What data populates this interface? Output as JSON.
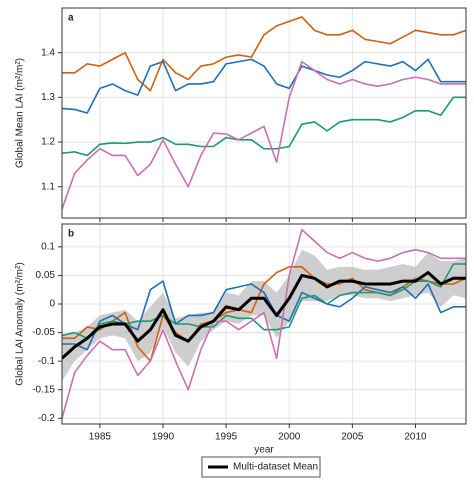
{
  "chart_data": [
    {
      "type": "line",
      "panel_label": "a",
      "y_label": "Global Mean LAI (m²/m²)",
      "x": [
        1982,
        1983,
        1984,
        1985,
        1986,
        1987,
        1988,
        1989,
        1990,
        1991,
        1992,
        1993,
        1994,
        1995,
        1996,
        1997,
        1998,
        1999,
        2000,
        2001,
        2002,
        2003,
        2004,
        2005,
        2006,
        2007,
        2008,
        2009,
        2010,
        2011,
        2012,
        2013,
        2014
      ],
      "xlim": [
        1982,
        2014
      ],
      "xticks": [
        1985,
        1990,
        1995,
        2000,
        2005,
        2010
      ],
      "ylim": [
        1.03,
        1.5
      ],
      "yticks": [
        1.1,
        1.2,
        1.3,
        1.4
      ],
      "grid": true,
      "series": [
        {
          "color": "#d45f0e",
          "values": [
            1.355,
            1.355,
            1.375,
            1.37,
            1.385,
            1.4,
            1.34,
            1.315,
            1.385,
            1.355,
            1.34,
            1.37,
            1.375,
            1.39,
            1.395,
            1.39,
            1.44,
            1.46,
            1.47,
            1.48,
            1.45,
            1.44,
            1.44,
            1.45,
            1.43,
            1.425,
            1.42,
            1.435,
            1.45,
            1.445,
            1.44,
            1.44,
            1.45
          ]
        },
        {
          "color": "#1f6fb4",
          "values": [
            1.275,
            1.273,
            1.265,
            1.32,
            1.33,
            1.315,
            1.305,
            1.37,
            1.38,
            1.315,
            1.33,
            1.33,
            1.335,
            1.375,
            1.38,
            1.385,
            1.37,
            1.33,
            1.32,
            1.37,
            1.36,
            1.35,
            1.345,
            1.36,
            1.38,
            1.375,
            1.37,
            1.38,
            1.36,
            1.385,
            1.335,
            1.335,
            1.335
          ]
        },
        {
          "color": "#1a9a73",
          "values": [
            1.175,
            1.178,
            1.17,
            1.195,
            1.198,
            1.197,
            1.2,
            1.2,
            1.21,
            1.195,
            1.195,
            1.19,
            1.19,
            1.21,
            1.205,
            1.205,
            1.185,
            1.185,
            1.19,
            1.24,
            1.245,
            1.225,
            1.245,
            1.25,
            1.25,
            1.25,
            1.245,
            1.255,
            1.27,
            1.27,
            1.26,
            1.3,
            1.3
          ]
        },
        {
          "color": "#cc6fb0",
          "values": [
            1.05,
            1.13,
            1.16,
            1.185,
            1.17,
            1.17,
            1.125,
            1.15,
            1.205,
            1.15,
            1.1,
            1.17,
            1.22,
            1.218,
            1.205,
            1.22,
            1.235,
            1.155,
            1.3,
            1.38,
            1.36,
            1.34,
            1.33,
            1.34,
            1.33,
            1.325,
            1.33,
            1.34,
            1.345,
            1.34,
            1.33,
            1.33,
            1.33
          ]
        }
      ]
    },
    {
      "type": "line",
      "panel_label": "b",
      "y_label": "Global LAI Anomaly (m²/m²)",
      "x_label": "year",
      "x": [
        1982,
        1983,
        1984,
        1985,
        1986,
        1987,
        1988,
        1989,
        1990,
        1991,
        1992,
        1993,
        1994,
        1995,
        1996,
        1997,
        1998,
        1999,
        2000,
        2001,
        2002,
        2003,
        2004,
        2005,
        2006,
        2007,
        2008,
        2009,
        2010,
        2011,
        2012,
        2013,
        2014
      ],
      "xlim": [
        1982,
        2014
      ],
      "xticks": [
        1985,
        1990,
        1995,
        2000,
        2005,
        2010
      ],
      "ylim": [
        -0.21,
        0.14
      ],
      "yticks": [
        -0.2,
        -0.15,
        -0.1,
        -0.05,
        0,
        0.05,
        0.1
      ],
      "grid": true,
      "band": {
        "color": "#bdbdbd",
        "lower": [
          -0.135,
          -0.1,
          -0.08,
          -0.06,
          -0.055,
          -0.06,
          -0.1,
          -0.085,
          -0.04,
          -0.085,
          -0.11,
          -0.065,
          -0.045,
          -0.03,
          -0.035,
          -0.02,
          -0.02,
          -0.06,
          -0.03,
          0.005,
          0.005,
          0.005,
          0.015,
          0.015,
          0.01,
          0.01,
          0.005,
          0.01,
          0.015,
          0.02,
          -0.005,
          0.015,
          0.01
        ],
        "upper": [
          -0.055,
          -0.05,
          -0.04,
          -0.02,
          -0.015,
          -0.01,
          -0.03,
          -0.005,
          0.02,
          -0.025,
          -0.02,
          -0.015,
          -0.015,
          0.02,
          0.015,
          0.04,
          0.04,
          0.02,
          0.05,
          0.095,
          0.085,
          0.06,
          0.065,
          0.065,
          0.06,
          0.06,
          0.065,
          0.07,
          0.065,
          0.09,
          0.075,
          0.075,
          0.08
        ]
      },
      "series": [
        {
          "color": "#d45f0e",
          "values": [
            -0.06,
            -0.06,
            -0.04,
            -0.045,
            -0.03,
            -0.015,
            -0.075,
            -0.1,
            -0.02,
            -0.05,
            -0.065,
            -0.035,
            -0.03,
            -0.015,
            -0.01,
            -0.015,
            0.035,
            0.055,
            0.065,
            0.065,
            0.045,
            0.035,
            0.035,
            0.045,
            0.025,
            0.02,
            0.015,
            0.03,
            0.045,
            0.04,
            0.035,
            0.035,
            0.045
          ]
        },
        {
          "color": "#1f6fb4",
          "values": [
            -0.07,
            -0.07,
            -0.08,
            -0.03,
            -0.02,
            -0.035,
            -0.045,
            0.025,
            0.04,
            -0.035,
            -0.02,
            -0.02,
            -0.015,
            0.025,
            0.03,
            0.035,
            0.02,
            -0.02,
            -0.03,
            0.02,
            0.01,
            0.0,
            -0.005,
            0.01,
            0.03,
            0.025,
            0.02,
            0.03,
            0.01,
            0.035,
            -0.015,
            -0.005,
            -0.005
          ]
        },
        {
          "color": "#1a9a73",
          "values": [
            -0.055,
            -0.05,
            -0.06,
            -0.035,
            -0.03,
            -0.035,
            -0.03,
            -0.03,
            -0.02,
            -0.035,
            -0.035,
            -0.04,
            -0.04,
            -0.02,
            -0.025,
            -0.025,
            -0.045,
            -0.045,
            -0.04,
            0.01,
            0.015,
            0.0,
            0.015,
            0.02,
            0.02,
            0.02,
            0.015,
            0.025,
            0.04,
            0.04,
            0.03,
            0.07,
            0.07
          ]
        },
        {
          "color": "#cc6fb0",
          "values": [
            -0.2,
            -0.12,
            -0.09,
            -0.065,
            -0.08,
            -0.08,
            -0.125,
            -0.1,
            -0.045,
            -0.1,
            -0.15,
            -0.08,
            -0.03,
            -0.03,
            -0.045,
            -0.03,
            -0.015,
            -0.095,
            0.05,
            0.13,
            0.11,
            0.09,
            0.08,
            0.09,
            0.08,
            0.075,
            0.08,
            0.09,
            0.095,
            0.09,
            0.08,
            0.08,
            0.08
          ]
        },
        {
          "name": "Multi-dataset Mean",
          "color": "#000000",
          "width": 3,
          "values": [
            -0.095,
            -0.075,
            -0.06,
            -0.04,
            -0.035,
            -0.035,
            -0.065,
            -0.045,
            -0.01,
            -0.055,
            -0.065,
            -0.04,
            -0.03,
            -0.005,
            -0.01,
            0.01,
            0.01,
            -0.02,
            0.01,
            0.05,
            0.045,
            0.03,
            0.04,
            0.04,
            0.035,
            0.035,
            0.035,
            0.04,
            0.04,
            0.055,
            0.035,
            0.045,
            0.045
          ]
        }
      ]
    }
  ]
}
